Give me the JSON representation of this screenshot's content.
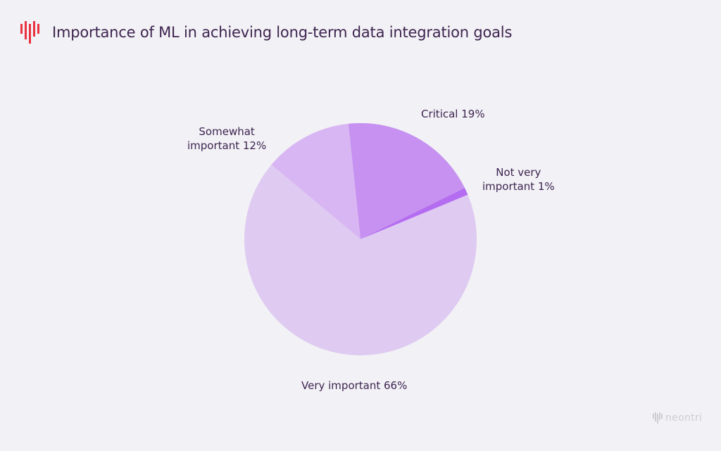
{
  "header": {
    "title": "Importance of ML in achieving long-term data integration goals",
    "logo_icon": "waveform-bars-icon",
    "accent_color": "#e8323f"
  },
  "chart_data": {
    "type": "pie",
    "title": "Importance of ML in achieving long-term data integration goals",
    "slices": [
      {
        "label_line1": "Critical 19%",
        "label_line2": "",
        "value": 19,
        "color": "#c691f0"
      },
      {
        "label_line1": "Not very",
        "label_line2": "important 1%",
        "value": 1,
        "color": "#b46cf0"
      },
      {
        "label_line1": "Very important 66%",
        "label_line2": "",
        "value": 66,
        "color": "#dfcaf2"
      },
      {
        "label_line1": "Somewhat",
        "label_line2": "important 12%",
        "value": 12,
        "color": "#d8b6f3"
      }
    ]
  },
  "footer": {
    "brand": "neontri",
    "logo_icon": "neontri-waveform-icon",
    "color": "#cfcdd4"
  }
}
